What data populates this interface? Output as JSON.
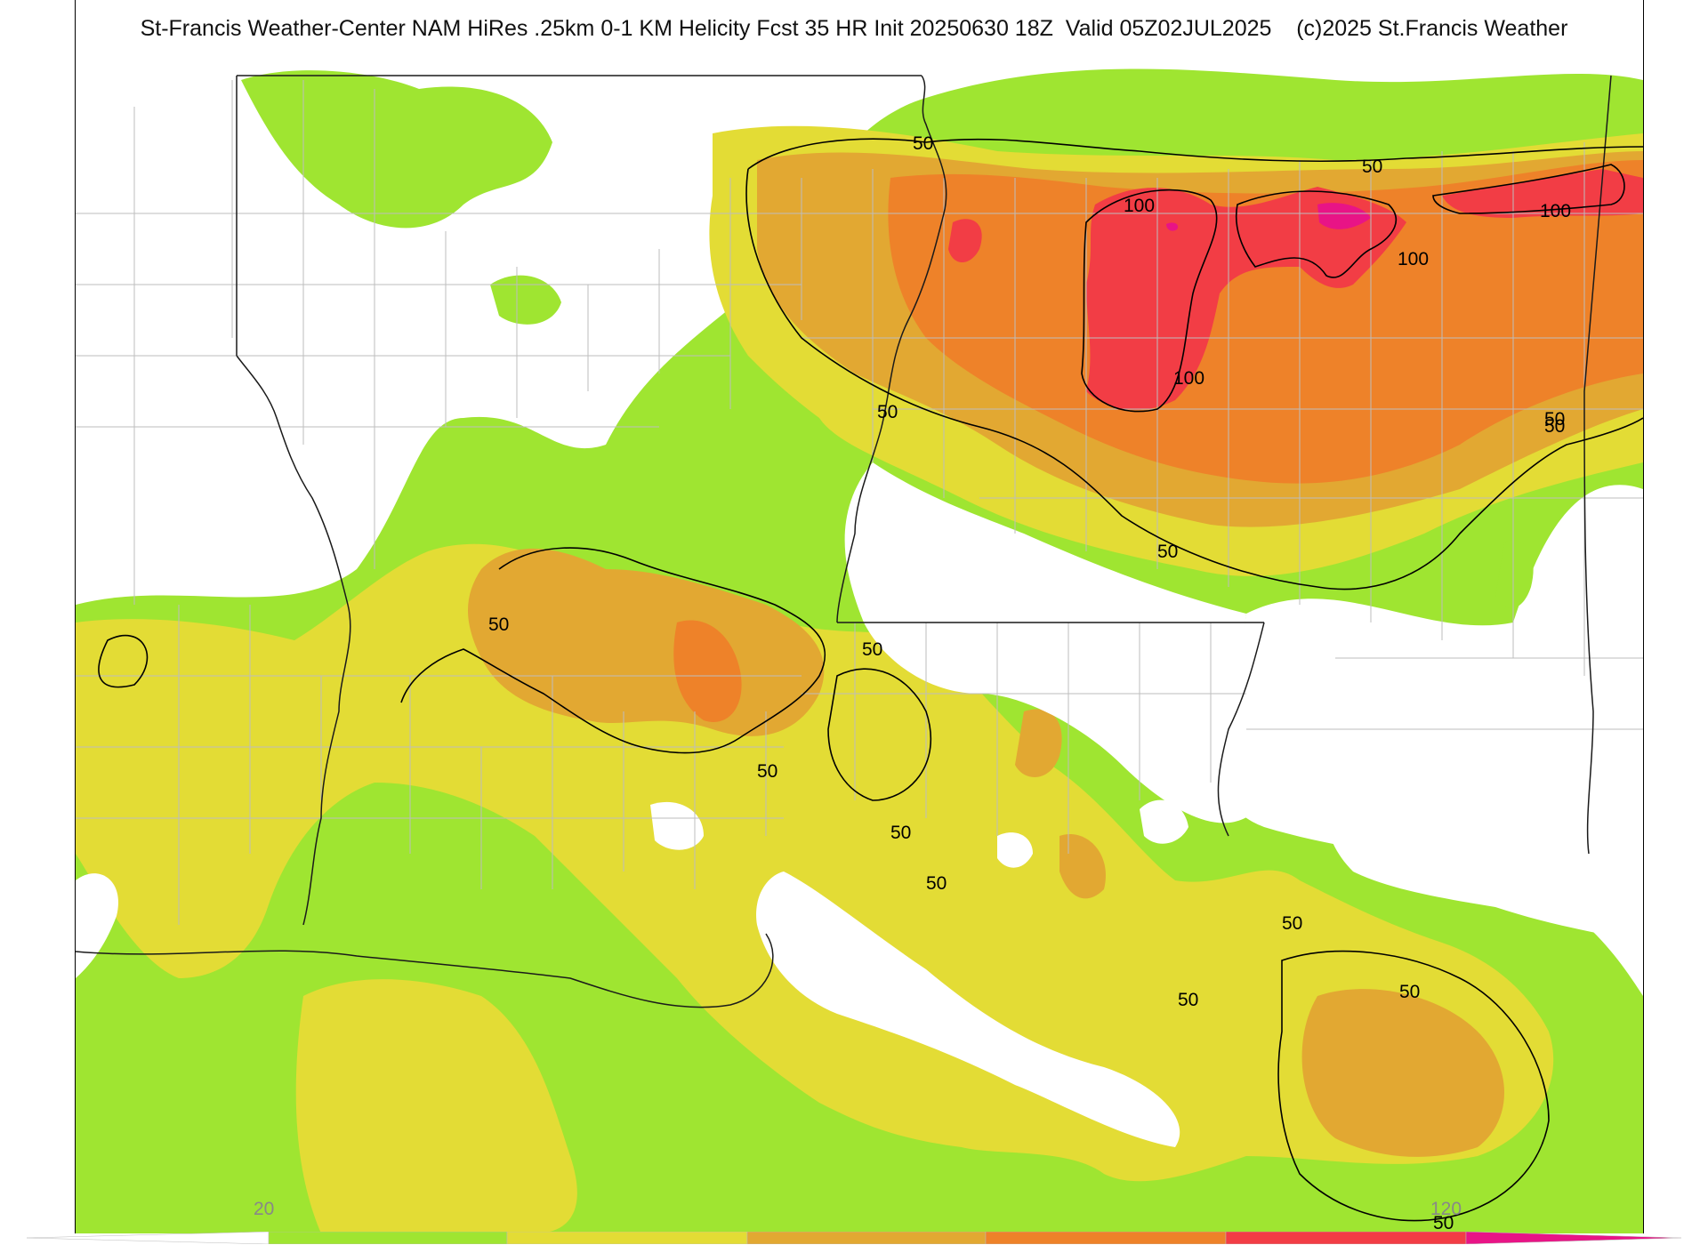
{
  "title": "St-Francis Weather-Center NAM HiRes .25km 0-1 KM Helicity Fcst 35 HR Init 20250630 18Z  Valid 05Z02JUL2025    (c)2025 St.Francis Weather",
  "colors": {
    "none": "#ffffff",
    "l20": "#9fe531",
    "l40": "#e3dc35",
    "l60": "#e2a832",
    "l80": "#ee8229",
    "l100": "#f23d45",
    "l120": "#e81486",
    "contour": "#000000",
    "border": "#1a1a1a",
    "county": "#bdbdbd"
  },
  "contour_labels": [
    "50",
    "50",
    "50",
    "100",
    "100",
    "100",
    "100",
    "50",
    "50",
    "50",
    "50",
    "50",
    "50",
    "50",
    "50",
    "50",
    "50",
    "50",
    "50"
  ],
  "colorbar": {
    "tick_labels": [
      "20",
      "120"
    ],
    "levels": [
      "none",
      "l20",
      "l40",
      "l60",
      "l80",
      "l100",
      "l120"
    ]
  }
}
